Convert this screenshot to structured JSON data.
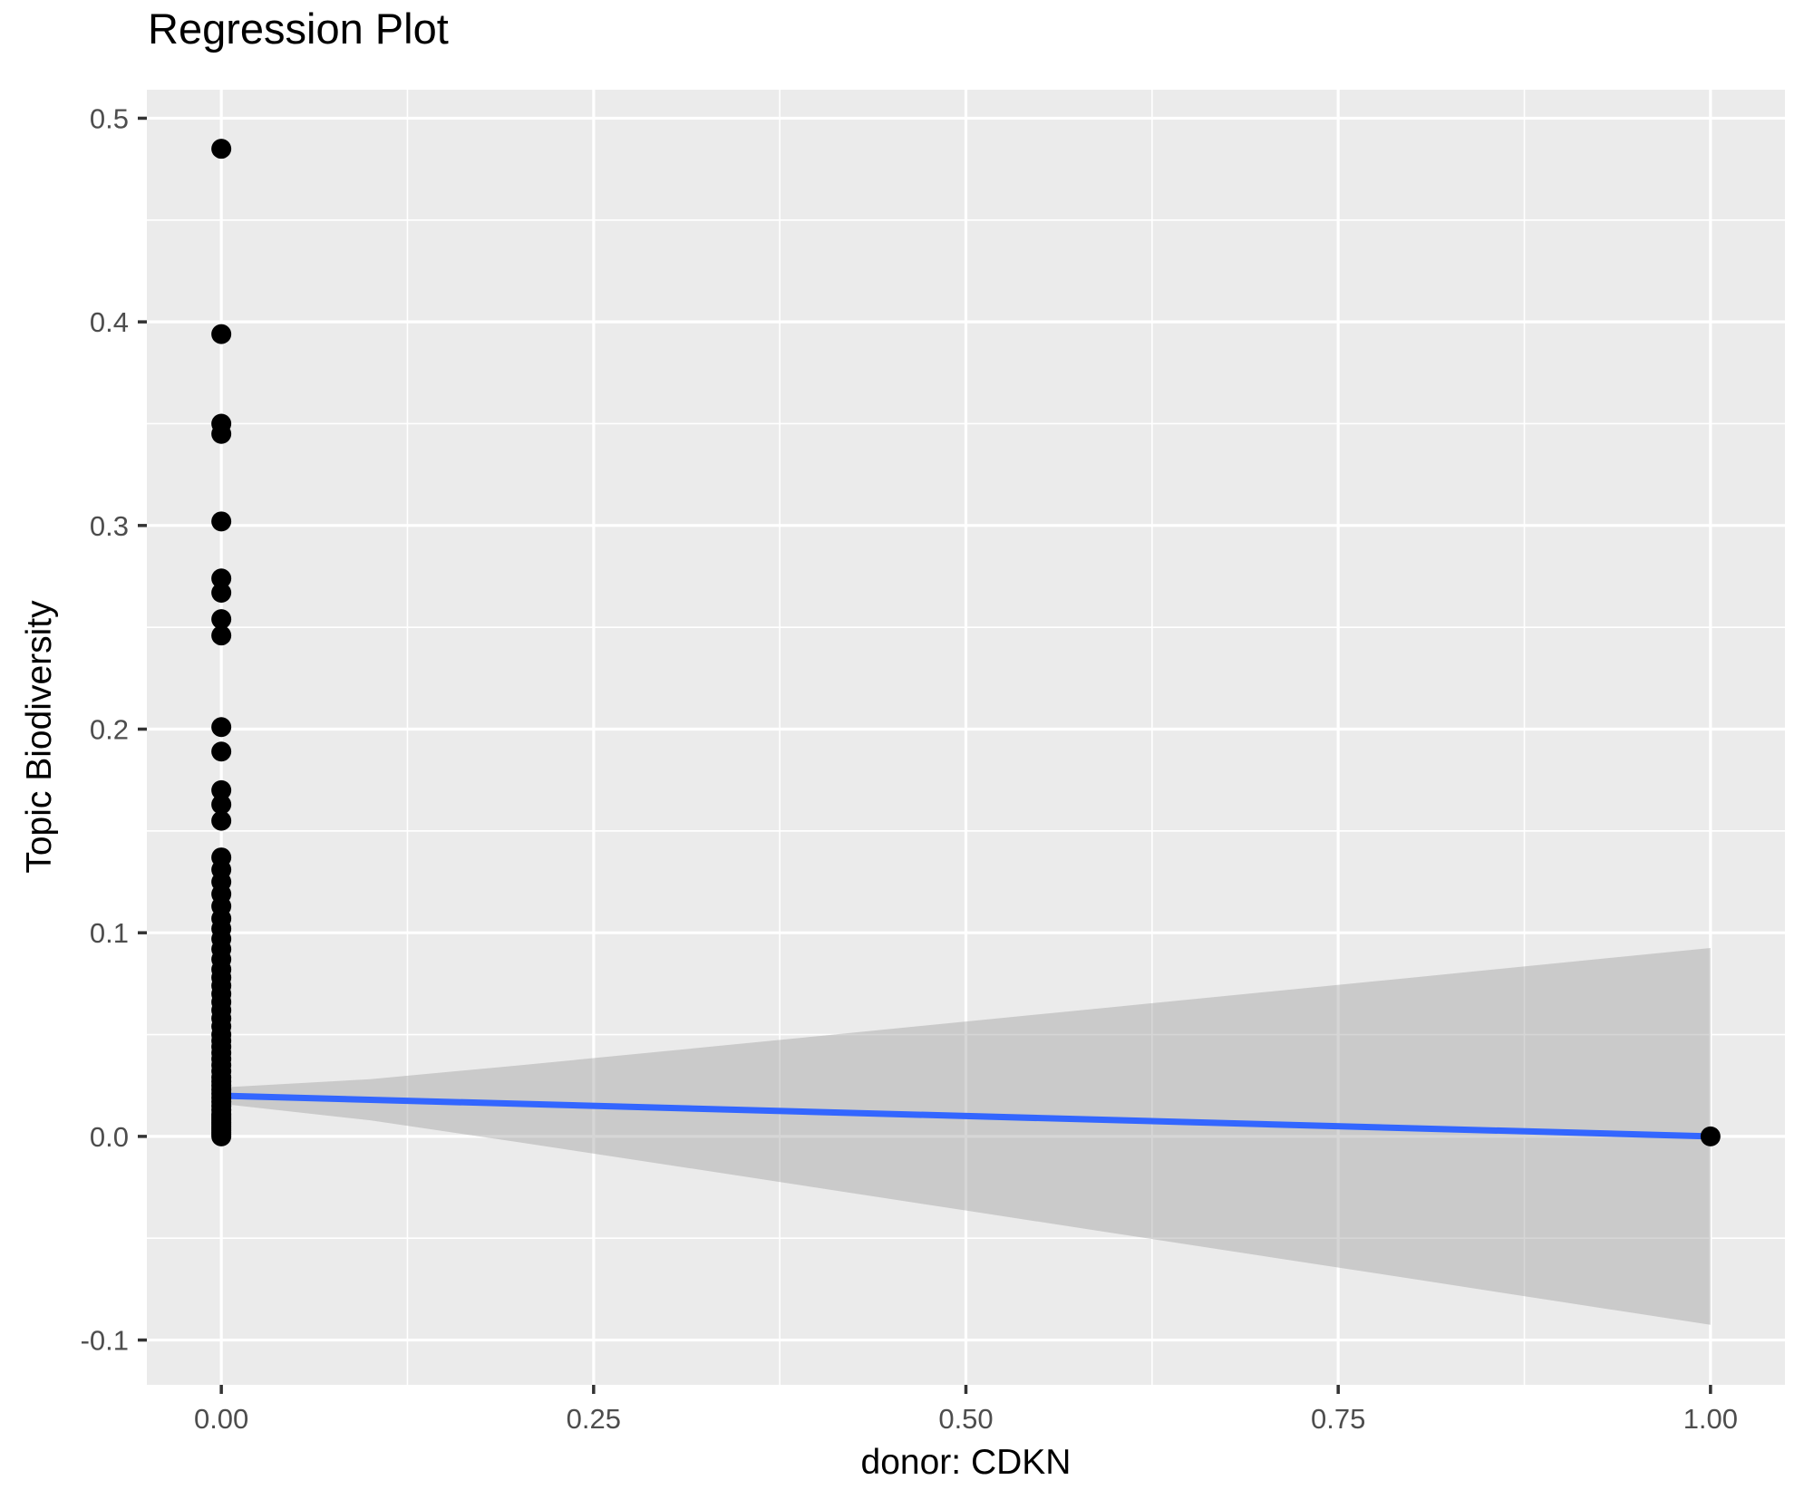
{
  "chart_data": {
    "type": "scatter",
    "title": "Regression Plot",
    "xlabel": "donor: CDKN",
    "ylabel": "Topic Biodiversity",
    "xlim": [
      -0.05,
      1.05
    ],
    "ylim": [
      -0.122,
      0.514
    ],
    "grid": true,
    "legend": false,
    "x_ticks": {
      "values": [
        0,
        0.25,
        0.5,
        0.75,
        1.0
      ],
      "labels": [
        "0.00",
        "0.25",
        "0.50",
        "0.75",
        "1.00"
      ]
    },
    "y_ticks": {
      "values": [
        -0.1,
        0.0,
        0.1,
        0.2,
        0.3,
        0.4,
        0.5
      ],
      "labels": [
        "-0.1",
        "0.0",
        "0.1",
        "0.2",
        "0.3",
        "0.4",
        "0.5"
      ]
    },
    "x_minor": [
      0.125,
      0.375,
      0.625,
      0.875
    ],
    "y_minor": [
      -0.05,
      0.05,
      0.15,
      0.25,
      0.35,
      0.45
    ],
    "points": [
      [
        0,
        0.485
      ],
      [
        0,
        0.394
      ],
      [
        0,
        0.35
      ],
      [
        0,
        0.345
      ],
      [
        0,
        0.302
      ],
      [
        0,
        0.274
      ],
      [
        0,
        0.267
      ],
      [
        0,
        0.254
      ],
      [
        0,
        0.246
      ],
      [
        0,
        0.201
      ],
      [
        0,
        0.189
      ],
      [
        0,
        0.17
      ],
      [
        0,
        0.163
      ],
      [
        0,
        0.155
      ],
      [
        0,
        0.137
      ],
      [
        0,
        0.131
      ],
      [
        0,
        0.125
      ],
      [
        0,
        0.119
      ],
      [
        0,
        0.113
      ],
      [
        0,
        0.107
      ],
      [
        0,
        0.102
      ],
      [
        0,
        0.097
      ],
      [
        0,
        0.092
      ],
      [
        0,
        0.087
      ],
      [
        0,
        0.082
      ],
      [
        0,
        0.078
      ],
      [
        0,
        0.074
      ],
      [
        0,
        0.07
      ],
      [
        0,
        0.066
      ],
      [
        0,
        0.062
      ],
      [
        0,
        0.058
      ],
      [
        0,
        0.054
      ],
      [
        0,
        0.05
      ],
      [
        0,
        0.047
      ],
      [
        0,
        0.044
      ],
      [
        0,
        0.041
      ],
      [
        0,
        0.038
      ],
      [
        0,
        0.035
      ],
      [
        0,
        0.032
      ],
      [
        0,
        0.029
      ],
      [
        0,
        0.027
      ],
      [
        0,
        0.025
      ],
      [
        0,
        0.023
      ],
      [
        0,
        0.021
      ],
      [
        0,
        0.019
      ],
      [
        0,
        0.017
      ],
      [
        0,
        0.015
      ],
      [
        0,
        0.013
      ],
      [
        0,
        0.011
      ],
      [
        0,
        0.01
      ],
      [
        0,
        0.009
      ],
      [
        0,
        0.008
      ],
      [
        0,
        0.007
      ],
      [
        0,
        0.006
      ],
      [
        0,
        0.005
      ],
      [
        0,
        0.004
      ],
      [
        0,
        0.003
      ],
      [
        0,
        0.002
      ],
      [
        0,
        0.001
      ],
      [
        0,
        0.0
      ],
      [
        1,
        0.0
      ]
    ],
    "regression_line": {
      "x": [
        0,
        1
      ],
      "y": [
        0.02,
        0.0
      ]
    },
    "ci_ribbon": {
      "x": [
        0,
        0.1,
        0.2,
        0.3,
        0.4,
        0.5,
        0.6,
        0.7,
        0.8,
        0.9,
        1.0
      ],
      "upper": [
        0.024,
        0.0281,
        0.0349,
        0.042,
        0.0492,
        0.0564,
        0.0636,
        0.0708,
        0.078,
        0.0853,
        0.0925
      ],
      "lower": [
        0.016,
        0.0079,
        -0.0029,
        -0.014,
        -0.0252,
        -0.0364,
        -0.0476,
        -0.0588,
        -0.07,
        -0.0813,
        -0.0925
      ]
    },
    "colors": {
      "panel_bg": "#EBEBEB",
      "grid": "#FFFFFF",
      "point": "#000000",
      "line": "#3366FF",
      "ribbon": "#999999",
      "tick_mark": "#333333",
      "tick_label": "#4D4D4D"
    }
  }
}
